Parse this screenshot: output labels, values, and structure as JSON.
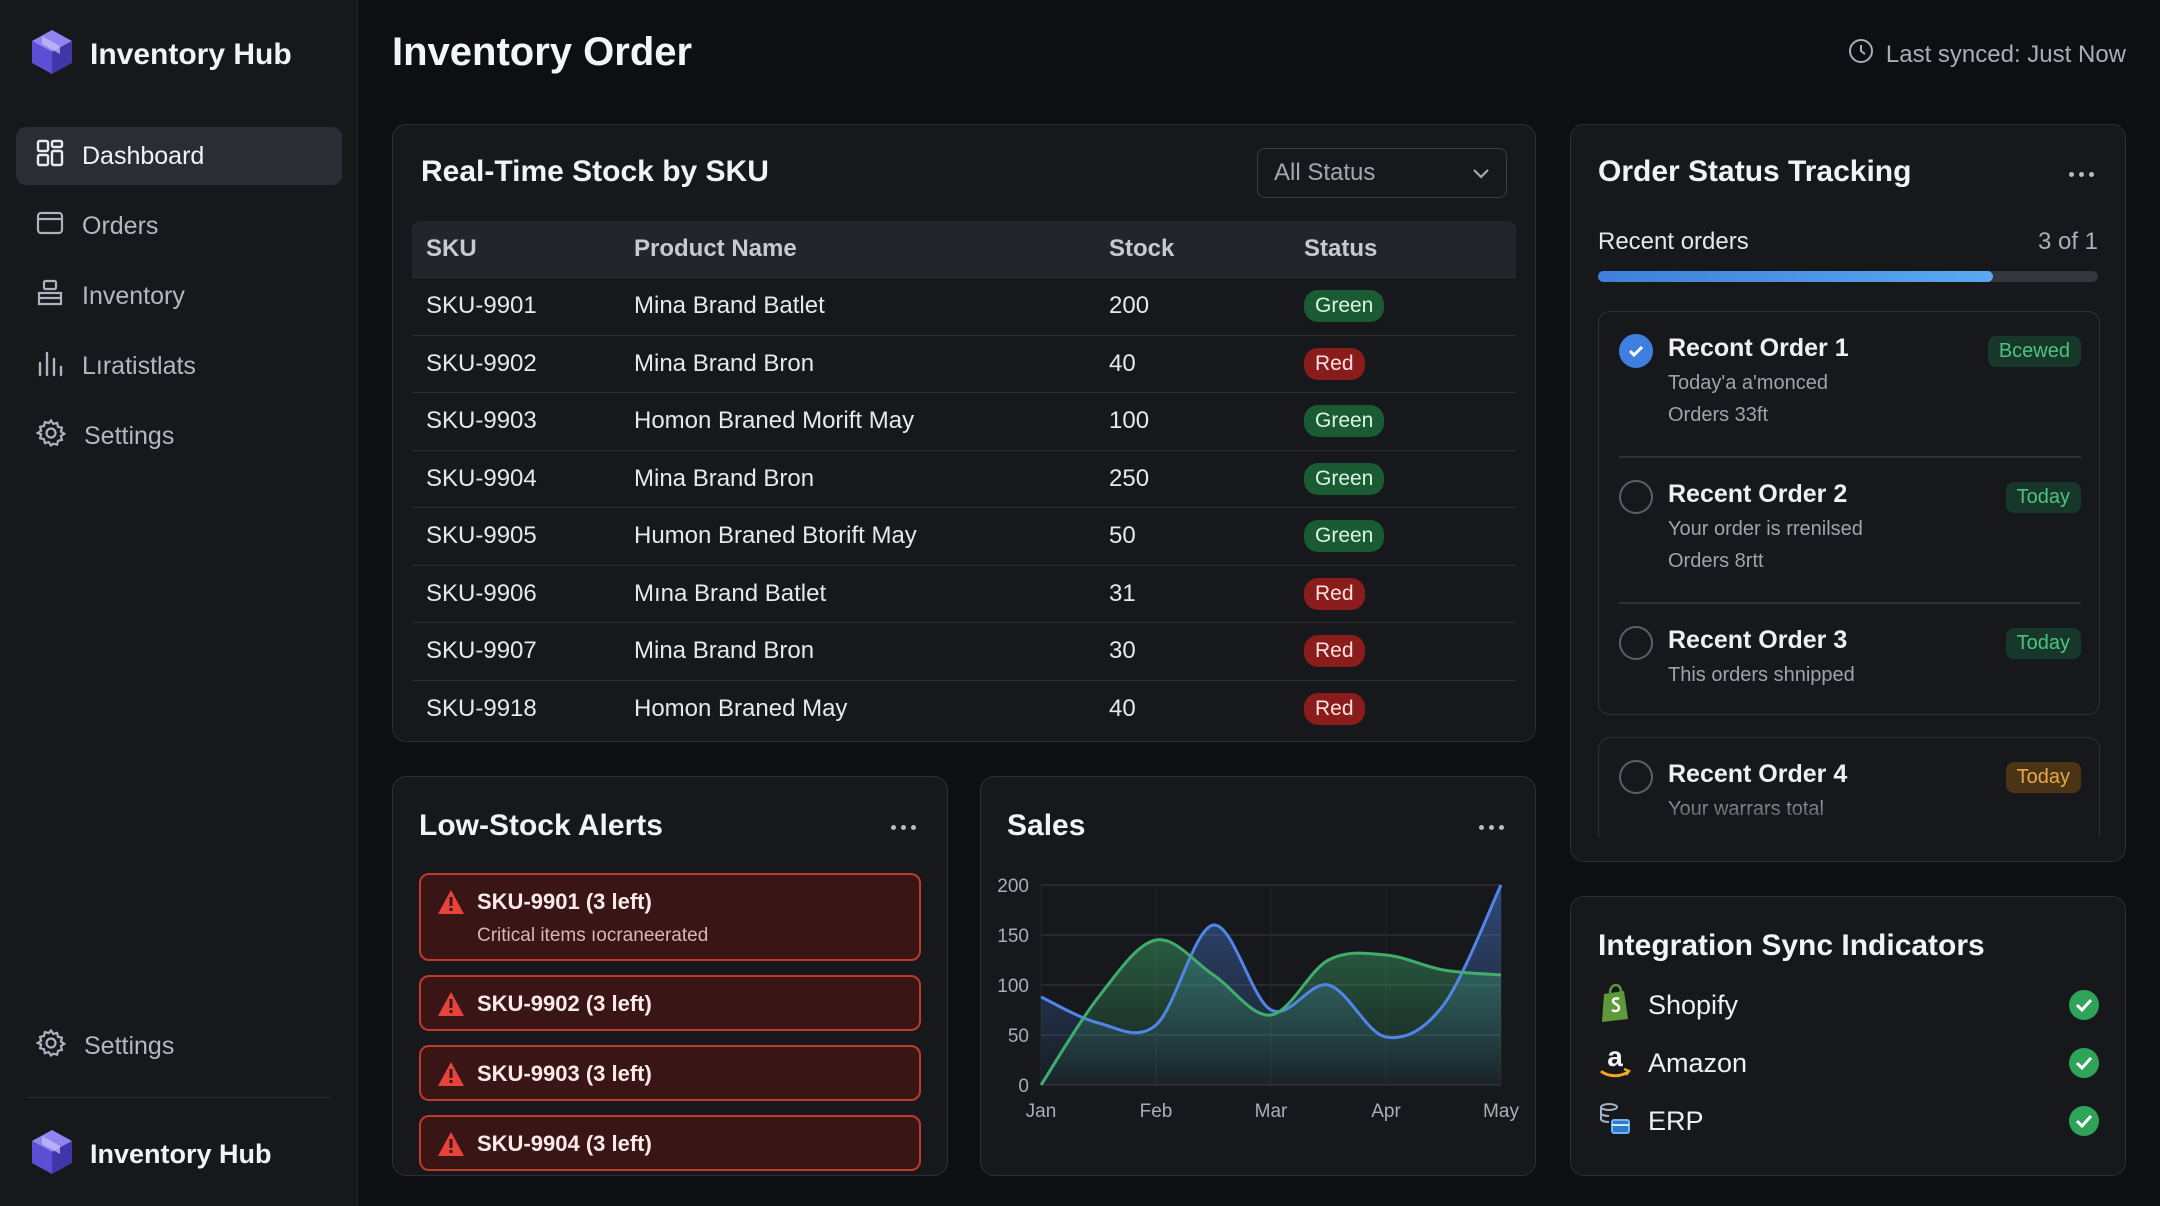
{
  "brand": {
    "name": "Inventory Hub",
    "accent": "#6b5ce7"
  },
  "sidebar": {
    "items": [
      {
        "label": "Dashboard",
        "icon": "grid-icon",
        "active": true
      },
      {
        "label": "Orders",
        "icon": "orders-icon",
        "active": false
      },
      {
        "label": "Inventory",
        "icon": "inventory-icon",
        "active": false
      },
      {
        "label": "Lıratistlats",
        "icon": "bar-chart-icon",
        "active": false
      },
      {
        "label": "Settings",
        "icon": "gear-icon",
        "active": false
      }
    ],
    "bottom_settings": "Settings",
    "bottom_brand": "Inventory Hub"
  },
  "header": {
    "title": "Inventory Order",
    "sync_text": "Last synced: Just Now"
  },
  "stock": {
    "title": "Real-Time Stock by SKU",
    "filter_value": "All Status",
    "columns": [
      "SKU",
      "Product Name",
      "Stock",
      "Status"
    ],
    "rows": [
      {
        "sku": "SKU-9901",
        "name": "Mina Brand Batlet",
        "stock": "200",
        "status": "Green"
      },
      {
        "sku": "SKU-9902",
        "name": "Mina Brand Bron",
        "stock": "40",
        "status": "Red"
      },
      {
        "sku": "SKU-9903",
        "name": "Homon Braned Morift May",
        "stock": "100",
        "status": "Green"
      },
      {
        "sku": "SKU-9904",
        "name": "Mina Brand Bron",
        "stock": "250",
        "status": "Green"
      },
      {
        "sku": "SKU-9905",
        "name": "Humon Braned Btorift May",
        "stock": "50",
        "status": "Green"
      },
      {
        "sku": "SKU-9906",
        "name": "Mına Brand Batlet",
        "stock": "31",
        "status": "Red"
      },
      {
        "sku": "SKU-9907",
        "name": "Mina Brand Bron",
        "stock": "30",
        "status": "Red"
      },
      {
        "sku": "SKU-9918",
        "name": "Homon Braned May",
        "stock": "40",
        "status": "Red"
      }
    ],
    "status_colors": {
      "Green": "#1a5b34",
      "Red": "#8a1c1c"
    }
  },
  "alerts": {
    "title": "Low-Stock Alerts",
    "items": [
      {
        "title": "SKU-9901 (3 left)",
        "subtitle": "Critical items ıocraneerated"
      },
      {
        "title": "SKU-9902 (3 left)",
        "subtitle": ""
      },
      {
        "title": "SKU-9903 (3 left)",
        "subtitle": ""
      },
      {
        "title": "SKU-9904 (3 left)",
        "subtitle": ""
      }
    ],
    "color": "#c0392b"
  },
  "sales": {
    "title": "Sales"
  },
  "chart_data": {
    "type": "area",
    "title": "Sales",
    "categories": [
      "Jan",
      "Feb",
      "Mar",
      "Apr",
      "May"
    ],
    "x": [
      0,
      0.5,
      1,
      1.5,
      2,
      2.5,
      3,
      3.5,
      4
    ],
    "series": [
      {
        "color": "#4f86e8",
        "values": [
          88,
          62,
          60,
          160,
          75,
          100,
          48,
          80,
          200
        ]
      },
      {
        "color": "#3fae6c",
        "values": [
          0,
          88,
          145,
          110,
          70,
          125,
          130,
          115,
          110
        ]
      }
    ],
    "yticks": [
      0,
      50,
      100,
      150,
      200
    ],
    "ylim": [
      0,
      200
    ],
    "grid": true
  },
  "orders": {
    "title": "Order Status Tracking",
    "recent_label": "Recent orders",
    "count": "3 of 1",
    "progress": 0.79,
    "items": [
      {
        "title": "Recont Order 1",
        "line1": "Today'a a'monced",
        "line2": "Orders 33ft",
        "tag": "Bcewed",
        "tag_style": "g",
        "checked": true
      },
      {
        "title": "Recent Order 2",
        "line1": "Your order is rrenilsed",
        "line2": "Orders 8rtt",
        "tag": "Today",
        "tag_style": "g",
        "checked": false
      },
      {
        "title": "Recent Order 3",
        "line1": "This orders shnipped",
        "line2": "",
        "tag": "Today",
        "tag_style": "g",
        "checked": false
      },
      {
        "title": "Recent Order 4",
        "line1": "Your warrars total",
        "line2": "",
        "tag": "Today",
        "tag_style": "y",
        "checked": false
      }
    ]
  },
  "integrations": {
    "title": "Integration Sync Indicators",
    "items": [
      {
        "name": "Shopify",
        "icon": "shopify-icon"
      },
      {
        "name": "Amazon",
        "icon": "amazon-icon"
      },
      {
        "name": "ERP",
        "icon": "erp-icon"
      }
    ],
    "ok_color": "#2fa35a"
  }
}
